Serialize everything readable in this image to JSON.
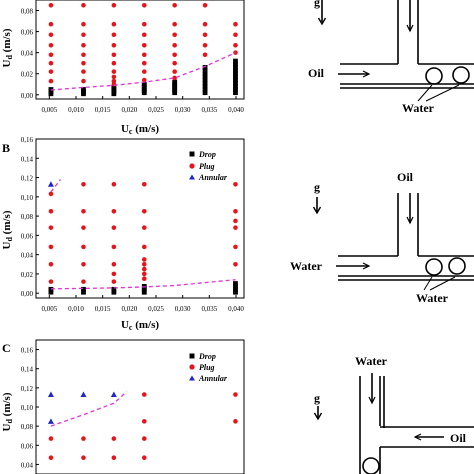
{
  "colors": {
    "drop": "#000000",
    "plug": "#e8141b",
    "annular": "#1f27c8",
    "trend": "#e234d6",
    "ink": "#000000"
  },
  "legend": [
    "Drop",
    "Plug",
    "Annular"
  ],
  "panels": [
    {
      "letter": "",
      "xlabel_main": "U",
      "xlabel_sub": "c",
      "xlabel_unit": " (m/s)",
      "ylabel_main": "U",
      "ylabel_sub": "d",
      "ylabel_unit": " (m/s)",
      "xticks": [
        "0,005",
        "0,010",
        "0,015",
        "0,020",
        "0,025",
        "0,030",
        "0,035",
        "0,040"
      ],
      "yticks": [
        "0,00",
        "0,02",
        "0,04",
        "0,06",
        "0,08"
      ]
    },
    {
      "letter": "B",
      "xlabel_main": "U",
      "xlabel_sub": "c",
      "xlabel_unit": " (m/s)",
      "ylabel_main": "U",
      "ylabel_sub": "d",
      "ylabel_unit": " (m/s)",
      "xticks": [
        "0,005",
        "0,010",
        "0,015",
        "0,020",
        "0,025",
        "0,030",
        "0,035",
        "0,040"
      ],
      "yticks": [
        "0,00",
        "0,02",
        "0,04",
        "0,06",
        "0,08",
        "0,10",
        "0,12",
        "0,14",
        "0,16"
      ]
    },
    {
      "letter": "C",
      "xlabel_main": "",
      "xlabel_sub": "",
      "xlabel_unit": "",
      "ylabel_main": "U",
      "ylabel_sub": "d",
      "ylabel_unit": " (m/s)",
      "xticks": [],
      "yticks": [
        "0,04",
        "0,06",
        "0,08",
        "0,10",
        "0,12",
        "0,14",
        "0,16"
      ]
    }
  ],
  "diagrams": [
    {
      "labels": {
        "g": "g",
        "fluid1": "Oil",
        "fluid2": "Water"
      }
    },
    {
      "labels": {
        "g": "g",
        "fluid1": "Oil",
        "fluid2": "Water",
        "fluid3": "Water"
      }
    },
    {
      "labels": {
        "g": "g",
        "fluid1": "Water",
        "fluid2": "Oil"
      }
    }
  ],
  "chart_data": [
    {
      "type": "scatter",
      "xlim": [
        0.0025,
        0.0415
      ],
      "ylim": [
        -0.004,
        0.09
      ],
      "series": [
        {
          "name": "Drop",
          "points": [
            [
              0.0053,
              0.001
            ],
            [
              0.0053,
              0.003
            ],
            [
              0.0053,
              0.005
            ],
            [
              0.0114,
              0.001
            ],
            [
              0.0114,
              0.003
            ],
            [
              0.0114,
              0.005
            ],
            [
              0.0171,
              0.001
            ],
            [
              0.0171,
              0.003
            ],
            [
              0.0171,
              0.005
            ],
            [
              0.0171,
              0.007
            ],
            [
              0.0228,
              0.002
            ],
            [
              0.0228,
              0.004
            ],
            [
              0.0228,
              0.006
            ],
            [
              0.0228,
              0.008
            ],
            [
              0.0228,
              0.01
            ],
            [
              0.0285,
              0.002
            ],
            [
              0.0285,
              0.004
            ],
            [
              0.0285,
              0.006
            ],
            [
              0.0285,
              0.008
            ],
            [
              0.0285,
              0.01
            ],
            [
              0.0285,
              0.012
            ],
            [
              0.0342,
              0.002
            ],
            [
              0.0342,
              0.005
            ],
            [
              0.0342,
              0.008
            ],
            [
              0.0342,
              0.011
            ],
            [
              0.0342,
              0.014
            ],
            [
              0.0342,
              0.017
            ],
            [
              0.0342,
              0.02
            ],
            [
              0.0342,
              0.023
            ],
            [
              0.0342,
              0.026
            ],
            [
              0.0399,
              0.002
            ],
            [
              0.0399,
              0.005
            ],
            [
              0.0399,
              0.008
            ],
            [
              0.0399,
              0.011
            ],
            [
              0.0399,
              0.014
            ],
            [
              0.0399,
              0.017
            ],
            [
              0.0399,
              0.02
            ],
            [
              0.0399,
              0.023
            ],
            [
              0.0399,
              0.026
            ],
            [
              0.0399,
              0.029
            ],
            [
              0.0399,
              0.032
            ]
          ]
        },
        {
          "name": "Plug",
          "points": [
            [
              0.0053,
              0.085
            ],
            [
              0.0053,
              0.067
            ],
            [
              0.0053,
              0.057
            ],
            [
              0.0053,
              0.047
            ],
            [
              0.0053,
              0.038
            ],
            [
              0.0053,
              0.03
            ],
            [
              0.0053,
              0.022
            ],
            [
              0.0053,
              0.013
            ],
            [
              0.0114,
              0.085
            ],
            [
              0.0114,
              0.067
            ],
            [
              0.0114,
              0.057
            ],
            [
              0.0114,
              0.047
            ],
            [
              0.0114,
              0.038
            ],
            [
              0.0114,
              0.03
            ],
            [
              0.0114,
              0.022
            ],
            [
              0.0114,
              0.013
            ],
            [
              0.0171,
              0.085
            ],
            [
              0.0171,
              0.067
            ],
            [
              0.0171,
              0.057
            ],
            [
              0.0171,
              0.047
            ],
            [
              0.0171,
              0.038
            ],
            [
              0.0171,
              0.03
            ],
            [
              0.0171,
              0.022
            ],
            [
              0.0171,
              0.017
            ],
            [
              0.0171,
              0.013
            ],
            [
              0.0171,
              0.01
            ],
            [
              0.0228,
              0.085
            ],
            [
              0.0228,
              0.067
            ],
            [
              0.0228,
              0.057
            ],
            [
              0.0228,
              0.047
            ],
            [
              0.0228,
              0.038
            ],
            [
              0.0228,
              0.03
            ],
            [
              0.0228,
              0.022
            ],
            [
              0.0228,
              0.014
            ],
            [
              0.0285,
              0.085
            ],
            [
              0.0285,
              0.067
            ],
            [
              0.0285,
              0.057
            ],
            [
              0.0285,
              0.047
            ],
            [
              0.0285,
              0.038
            ],
            [
              0.0285,
              0.03
            ],
            [
              0.0285,
              0.022
            ],
            [
              0.0285,
              0.016
            ],
            [
              0.0342,
              0.085
            ],
            [
              0.0342,
              0.067
            ],
            [
              0.0342,
              0.057
            ],
            [
              0.0342,
              0.047
            ],
            [
              0.0342,
              0.038
            ],
            [
              0.0399,
              0.067
            ],
            [
              0.0399,
              0.057
            ],
            [
              0.0399,
              0.047
            ],
            [
              0.0399,
              0.04
            ]
          ]
        },
        {
          "name": "Trend",
          "points": [
            [
              0.0053,
              0.0045
            ],
            [
              0.0114,
              0.007
            ],
            [
              0.0171,
              0.009
            ],
            [
              0.0228,
              0.012
            ],
            [
              0.0285,
              0.016
            ],
            [
              0.0342,
              0.027
            ],
            [
              0.0399,
              0.04
            ]
          ]
        }
      ]
    },
    {
      "type": "scatter",
      "xlim": [
        0.0025,
        0.0415
      ],
      "ylim": [
        -0.005,
        0.16
      ],
      "series": [
        {
          "name": "Drop",
          "points": [
            [
              0.0053,
              0.001
            ],
            [
              0.0053,
              0.004
            ],
            [
              0.0114,
              0.001
            ],
            [
              0.0114,
              0.004
            ],
            [
              0.0171,
              0.001
            ],
            [
              0.0171,
              0.004
            ],
            [
              0.0228,
              0.001
            ],
            [
              0.0228,
              0.004
            ],
            [
              0.0228,
              0.007
            ],
            [
              0.0399,
              0.001
            ],
            [
              0.0399,
              0.004
            ],
            [
              0.0399,
              0.007
            ],
            [
              0.0399,
              0.01
            ]
          ]
        },
        {
          "name": "Plug",
          "points": [
            [
              0.0053,
              0.103
            ],
            [
              0.0053,
              0.085
            ],
            [
              0.0053,
              0.068
            ],
            [
              0.0053,
              0.048
            ],
            [
              0.0053,
              0.03
            ],
            [
              0.0053,
              0.012
            ],
            [
              0.0114,
              0.113
            ],
            [
              0.0114,
              0.085
            ],
            [
              0.0114,
              0.068
            ],
            [
              0.0114,
              0.048
            ],
            [
              0.0114,
              0.03
            ],
            [
              0.0114,
              0.012
            ],
            [
              0.0171,
              0.113
            ],
            [
              0.0171,
              0.085
            ],
            [
              0.0171,
              0.068
            ],
            [
              0.0171,
              0.048
            ],
            [
              0.0171,
              0.03
            ],
            [
              0.0171,
              0.02
            ],
            [
              0.0171,
              0.012
            ],
            [
              0.0228,
              0.113
            ],
            [
              0.0228,
              0.085
            ],
            [
              0.0228,
              0.068
            ],
            [
              0.0228,
              0.048
            ],
            [
              0.0228,
              0.035
            ],
            [
              0.0228,
              0.03
            ],
            [
              0.0228,
              0.025
            ],
            [
              0.0228,
              0.02
            ],
            [
              0.0228,
              0.015
            ],
            [
              0.0399,
              0.113
            ],
            [
              0.0399,
              0.085
            ],
            [
              0.0399,
              0.075
            ],
            [
              0.0399,
              0.068
            ],
            [
              0.0399,
              0.048
            ],
            [
              0.0399,
              0.03
            ]
          ]
        },
        {
          "name": "Annular",
          "points": [
            [
              0.0053,
              0.113
            ]
          ]
        },
        {
          "name": "Trend",
          "points": [
            [
              0.0053,
              0.0045
            ],
            [
              0.0114,
              0.005
            ],
            [
              0.0171,
              0.0055
            ],
            [
              0.0228,
              0.0065
            ],
            [
              0.0285,
              0.008
            ],
            [
              0.0342,
              0.011
            ],
            [
              0.0399,
              0.014
            ]
          ]
        },
        {
          "name": "Trend2",
          "points": [
            [
              0.0053,
              0.105
            ],
            [
              0.0071,
              0.118
            ]
          ]
        }
      ]
    },
    {
      "type": "scatter",
      "xlim": [
        0.0025,
        0.0415
      ],
      "ylim": [
        0.03,
        0.17
      ],
      "series": [
        {
          "name": "Plug",
          "points": [
            [
              0.0053,
              0.067
            ],
            [
              0.0053,
              0.047
            ],
            [
              0.0114,
              0.067
            ],
            [
              0.0114,
              0.047
            ],
            [
              0.0171,
              0.067
            ],
            [
              0.0171,
              0.047
            ],
            [
              0.0228,
              0.113
            ],
            [
              0.0228,
              0.085
            ],
            [
              0.0228,
              0.067
            ],
            [
              0.0228,
              0.047
            ],
            [
              0.0399,
              0.113
            ],
            [
              0.0399,
              0.085
            ]
          ]
        },
        {
          "name": "Annular",
          "points": [
            [
              0.0053,
              0.113
            ],
            [
              0.0053,
              0.085
            ],
            [
              0.0114,
              0.113
            ],
            [
              0.0171,
              0.113
            ]
          ]
        },
        {
          "name": "Trend",
          "points": [
            [
              0.0053,
              0.08
            ],
            [
              0.0114,
              0.092
            ],
            [
              0.0171,
              0.104
            ],
            [
              0.0195,
              0.116
            ]
          ]
        }
      ]
    }
  ]
}
